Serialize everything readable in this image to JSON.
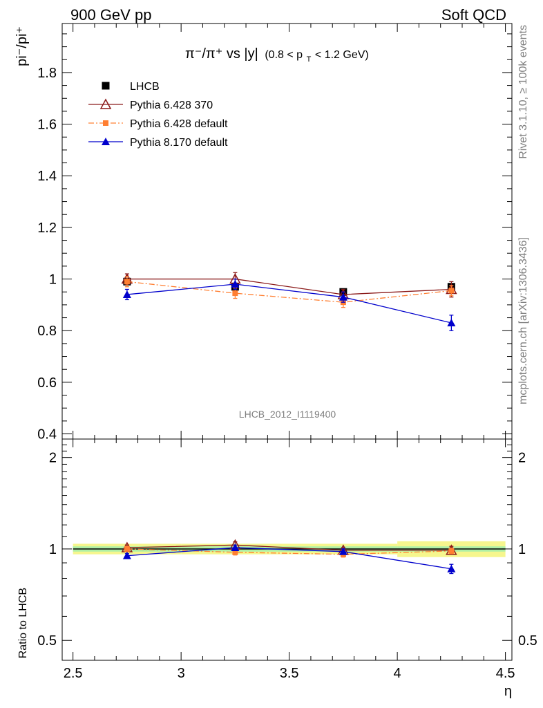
{
  "header": {
    "left": "900 GeV pp",
    "right": "Soft QCD"
  },
  "side": {
    "rivet": "Rivet 3.1.10, ≥ 100k events",
    "mcplots": "mcplots.cern.ch [arXiv:1306.3436]"
  },
  "plot": {
    "title_main": "π⁻/π⁺ vs |y|",
    "title_cut": "(0.8 < p",
    "title_cut_sub": "T",
    "title_cut_end": " < 1.2 GeV)",
    "ylabel_main": "pi⁻/pi⁺",
    "ylabel_ratio": "Ratio to LHCB",
    "xlabel": "η",
    "analysis_id": "LHCB_2012_I1119400"
  },
  "chart_data": [
    {
      "type": "scatter",
      "panel": "main",
      "title": "π⁻/π⁺ vs |y| (0.8 < pT < 1.2 GeV)",
      "xlabel": "",
      "ylabel": "pi⁻/pi⁺",
      "xlim": [
        2.45,
        4.53
      ],
      "ylim": [
        0.38,
        1.99
      ],
      "x_ticks": [
        2.5,
        3,
        3.5,
        4,
        4.5
      ],
      "y_ticks": [
        0.4,
        0.6,
        0.8,
        1,
        1.2,
        1.4,
        1.6,
        1.8
      ],
      "legend_position": "top-left",
      "x": [
        2.75,
        3.25,
        3.75,
        4.25
      ],
      "series": [
        {
          "name": "LHCB",
          "color": "#000000",
          "marker": "square",
          "line": "none",
          "values": [
            0.99,
            0.97,
            0.95,
            0.97
          ],
          "errors": [
            0.01,
            0.01,
            0.01,
            0.01
          ]
        },
        {
          "name": "Pythia 6.428 370",
          "color": "#8b1a1a",
          "marker": "open-triangle",
          "line": "solid",
          "values": [
            1.0,
            1.0,
            0.94,
            0.96
          ],
          "errors": [
            0.02,
            0.025,
            0.02,
            0.03
          ]
        },
        {
          "name": "Pythia 6.428 default",
          "color": "#ff7f32",
          "marker": "square-small",
          "line": "dashdot",
          "values": [
            0.99,
            0.945,
            0.91,
            0.955
          ],
          "errors": [
            0.02,
            0.02,
            0.02,
            0.02
          ]
        },
        {
          "name": "Pythia 8.170 default",
          "color": "#0000cc",
          "marker": "triangle",
          "line": "solid",
          "values": [
            0.94,
            0.98,
            0.93,
            0.83
          ],
          "errors": [
            0.02,
            0.02,
            0.02,
            0.03
          ]
        }
      ]
    },
    {
      "type": "scatter",
      "panel": "ratio",
      "xlabel": "η",
      "ylabel": "Ratio to LHCB",
      "xlim": [
        2.45,
        4.53
      ],
      "ylim": [
        0.43,
        2.3
      ],
      "y_scale": "log",
      "x_ticks": [
        2.5,
        3,
        3.5,
        4,
        4.5
      ],
      "y_ticks": [
        0.5,
        1,
        2
      ],
      "x": [
        2.75,
        3.25,
        3.75,
        4.25
      ],
      "band": {
        "inner": [
          0.02,
          0.02,
          0.02,
          0.02
        ],
        "outer": [
          0.04,
          0.04,
          0.04,
          0.06
        ]
      },
      "series": [
        {
          "name": "Pythia 6.428 370",
          "color": "#8b1a1a",
          "marker": "open-triangle",
          "line": "solid",
          "values": [
            1.01,
            1.03,
            0.99,
            0.99
          ],
          "errors": [
            0.02,
            0.025,
            0.02,
            0.03
          ]
        },
        {
          "name": "Pythia 6.428 default",
          "color": "#ff7f32",
          "marker": "square-small",
          "line": "dashdot",
          "values": [
            1.0,
            0.975,
            0.96,
            0.985
          ],
          "errors": [
            0.02,
            0.02,
            0.02,
            0.02
          ]
        },
        {
          "name": "Pythia 8.170 default",
          "color": "#0000cc",
          "marker": "triangle",
          "line": "solid",
          "values": [
            0.95,
            1.01,
            0.98,
            0.86
          ],
          "errors": [
            0.015,
            0.02,
            0.02,
            0.03
          ]
        }
      ]
    }
  ]
}
